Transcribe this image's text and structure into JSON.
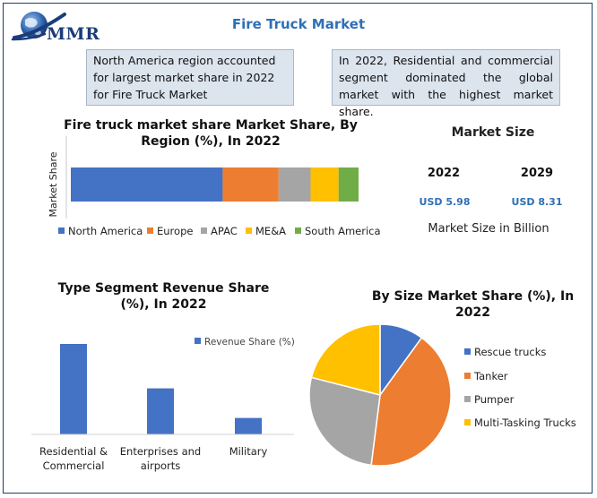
{
  "brand": {
    "logo_text": "MMR"
  },
  "header": {
    "title": "Fire Truck Market"
  },
  "notes": [
    "North America region accounted for largest market share in 2022 for Fire Truck Market",
    "In 2022, Residential and commercial segment dominated the global market with the highest market share."
  ],
  "market_size": {
    "title": "Market Size",
    "years": [
      "2022",
      "2029"
    ],
    "values": [
      "USD 5.98",
      "USD 8.31"
    ],
    "footer": "Market Size in Billion"
  },
  "chart_data": [
    {
      "type": "bar",
      "orientation": "horizontal-stacked",
      "title": "Fire truck market share Market Share, By Region (%), In 2022",
      "ylabel": "Market Share",
      "legend_position": "bottom",
      "series": [
        {
          "name": "North America",
          "values": [
            38
          ],
          "color": "#4472c4"
        },
        {
          "name": "Europe",
          "values": [
            14
          ],
          "color": "#ed7d31"
        },
        {
          "name": "APAC",
          "values": [
            8
          ],
          "color": "#a5a5a5"
        },
        {
          "name": "ME&A",
          "values": [
            7
          ],
          "color": "#ffc000"
        },
        {
          "name": "South America",
          "values": [
            5
          ],
          "color": "#70ad47"
        }
      ]
    },
    {
      "type": "bar",
      "title": "Type Segment Revenue Share (%), In 2022",
      "legend_position": "top-right",
      "categories": [
        "Residential & Commercial",
        "Enterprises and airports",
        "Military"
      ],
      "series": [
        {
          "name": "Revenue Share (%)",
          "values": [
            55,
            28,
            10
          ],
          "color": "#4472c4"
        }
      ]
    },
    {
      "type": "pie",
      "title": "By Size Market Share (%), In 2022",
      "legend_position": "right",
      "categories": [
        "Rescue trucks",
        "Tanker",
        "Pumper",
        "Multi-Tasking Trucks"
      ],
      "values": [
        10,
        42,
        27,
        21
      ],
      "colors": [
        "#4472c4",
        "#ed7d31",
        "#a5a5a5",
        "#ffc000"
      ]
    }
  ]
}
